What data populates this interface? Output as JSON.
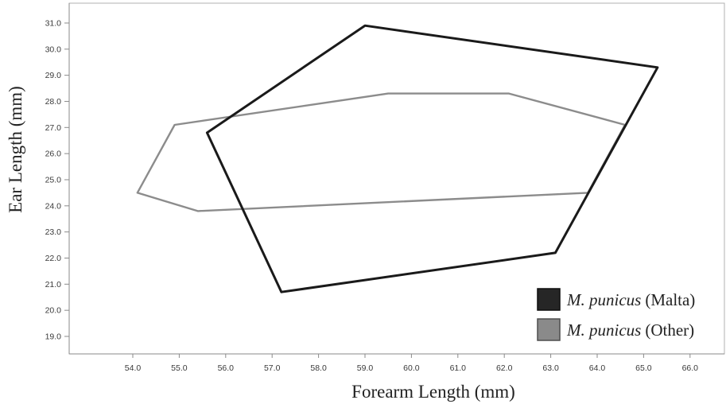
{
  "chart_data": {
    "type": "line",
    "xlabel": "Forearm Length (mm)",
    "ylabel": "Ear Length (mm)",
    "xlim": [
      52.63,
      66.74
    ],
    "ylim": [
      18.33,
      31.76
    ],
    "xticks": [
      "54.0",
      "55.0",
      "56.0",
      "57.0",
      "58.0",
      "59.0",
      "60.0",
      "61.0",
      "62.0",
      "63.0",
      "64.0",
      "65.0",
      "66.0"
    ],
    "yticks": [
      "31.0",
      "30.0",
      "29.0",
      "28.0",
      "27.0",
      "26.0",
      "25.0",
      "24.0",
      "23.0",
      "22.0",
      "21.0",
      "20.0",
      "19.0"
    ],
    "grid": false,
    "legend_position": "bottom-right",
    "series": [
      {
        "name": "M. punicus",
        "qualifier": "(Malta)",
        "color": "#1a1a1a",
        "swatch_color": "#262626",
        "closed": true,
        "points": [
          [
            59.0,
            30.9
          ],
          [
            65.3,
            29.3
          ],
          [
            63.1,
            22.2
          ],
          [
            57.2,
            20.7
          ],
          [
            55.6,
            26.8
          ]
        ]
      },
      {
        "name": "M. punicus",
        "qualifier": "(Other)",
        "color": "#8c8c8c",
        "swatch_color": "#8a8a8a",
        "closed": true,
        "points": [
          [
            54.1,
            24.5
          ],
          [
            54.9,
            27.1
          ],
          [
            59.5,
            28.3
          ],
          [
            62.1,
            28.3
          ],
          [
            64.6,
            27.1
          ],
          [
            63.8,
            24.5
          ],
          [
            55.4,
            23.8
          ]
        ]
      }
    ]
  }
}
